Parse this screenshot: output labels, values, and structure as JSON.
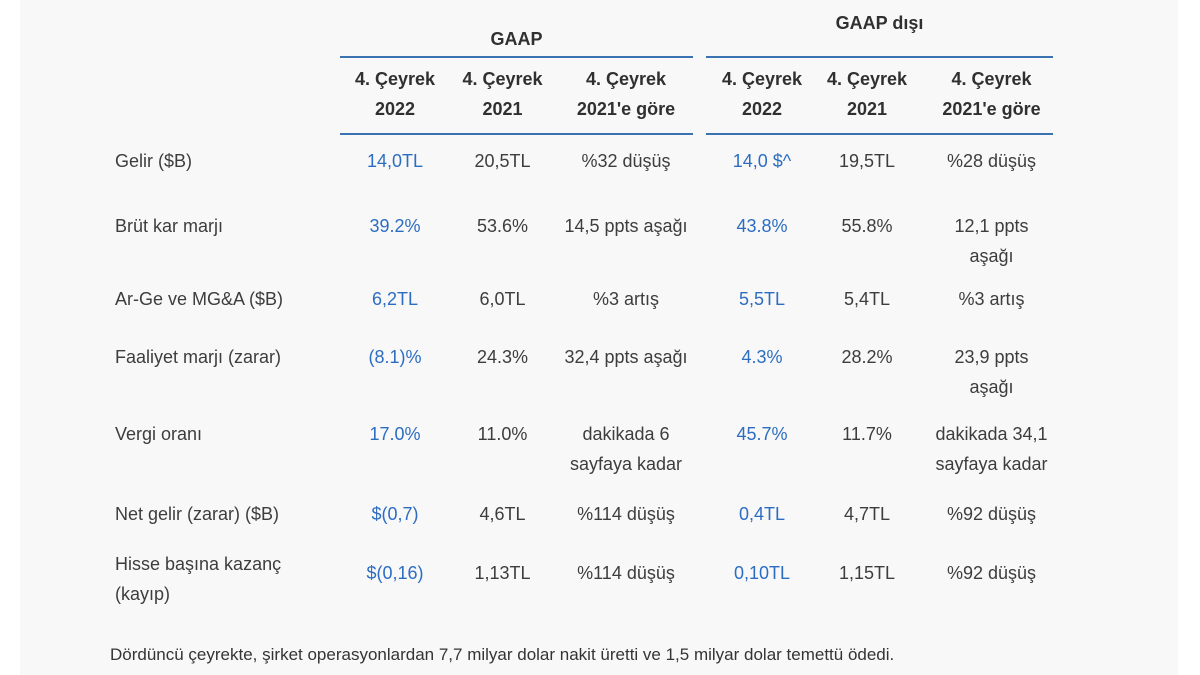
{
  "colors": {
    "page_background": "#f8f8f8",
    "rule_blue": "#3a72b2",
    "value_blue": "#2c6dc2",
    "text_dark": "#3d3d3d"
  },
  "table": {
    "group_headers": [
      {
        "label": "GAAP"
      },
      {
        "label": "GAAP dışı"
      }
    ],
    "column_headers": {
      "gaap": [
        {
          "line1": "4. Çeyrek",
          "line2": "2022"
        },
        {
          "line1": "4. Çeyrek",
          "line2": "2021"
        },
        {
          "line1": "4. Çeyrek",
          "line2": "2021'e göre"
        }
      ],
      "non_gaap": [
        {
          "line1": "4. Çeyrek",
          "line2": "2022"
        },
        {
          "line1": "4. Çeyrek",
          "line2": "2021"
        },
        {
          "line1": "4. Çeyrek",
          "line2": "2021'e göre"
        }
      ]
    },
    "rows": [
      {
        "label": "Gelir ($B)",
        "gaap_2022": "14,0TL",
        "gaap_2021": "20,5TL",
        "gaap_change": "%32 düşüş",
        "ngaap_2022": "14,0 $^",
        "ngaap_2021": "19,5TL",
        "ngaap_change": "%28 düşüş"
      },
      {
        "label": "Brüt kar marjı",
        "gaap_2022": "39.2%",
        "gaap_2021": "53.6%",
        "gaap_change": "14,5 ppts aşağı",
        "ngaap_2022": "43.8%",
        "ngaap_2021": "55.8%",
        "ngaap_change": "12,1 ppts aşağı"
      },
      {
        "label": "Ar-Ge ve MG&A ($B)",
        "gaap_2022": "6,2TL",
        "gaap_2021": "6,0TL",
        "gaap_change": "%3 artış",
        "ngaap_2022": "5,5TL",
        "ngaap_2021": "5,4TL",
        "ngaap_change": "%3 artış"
      },
      {
        "label": "Faaliyet marjı (zarar)",
        "gaap_2022": "(8.1)%",
        "gaap_2021": "24.3%",
        "gaap_change": "32,4 ppts aşağı",
        "ngaap_2022": "4.3%",
        "ngaap_2021": "28.2%",
        "ngaap_change": "23,9 ppts aşağı"
      },
      {
        "label": "Vergi oranı",
        "gaap_2022": "17.0%",
        "gaap_2021": "11.0%",
        "gaap_change": "dakikada 6 sayfaya kadar",
        "ngaap_2022": "45.7%",
        "ngaap_2021": "11.7%",
        "ngaap_change": "dakikada 34,1 sayfaya kadar"
      },
      {
        "label": "Net gelir (zarar) ($B)",
        "gaap_2022": "$(0,7)",
        "gaap_2021": "4,6TL",
        "gaap_change": "%114 düşüş",
        "ngaap_2022": "0,4TL",
        "ngaap_2021": "4,7TL",
        "ngaap_change": "%92 düşüş"
      },
      {
        "label": "Hisse başına kazanç (kayıp)",
        "gaap_2022": "$(0,16)",
        "gaap_2021": "1,13TL",
        "gaap_change": "%114 düşüş",
        "ngaap_2022": "0,10TL",
        "ngaap_2021": "1,15TL",
        "ngaap_change": "%92 düşüş"
      }
    ],
    "footnote": "Dördüncü çeyrekte, şirket operasyonlardan 7,7 milyar dolar nakit üretti ve 1,5 milyar dolar temettü ödedi."
  }
}
